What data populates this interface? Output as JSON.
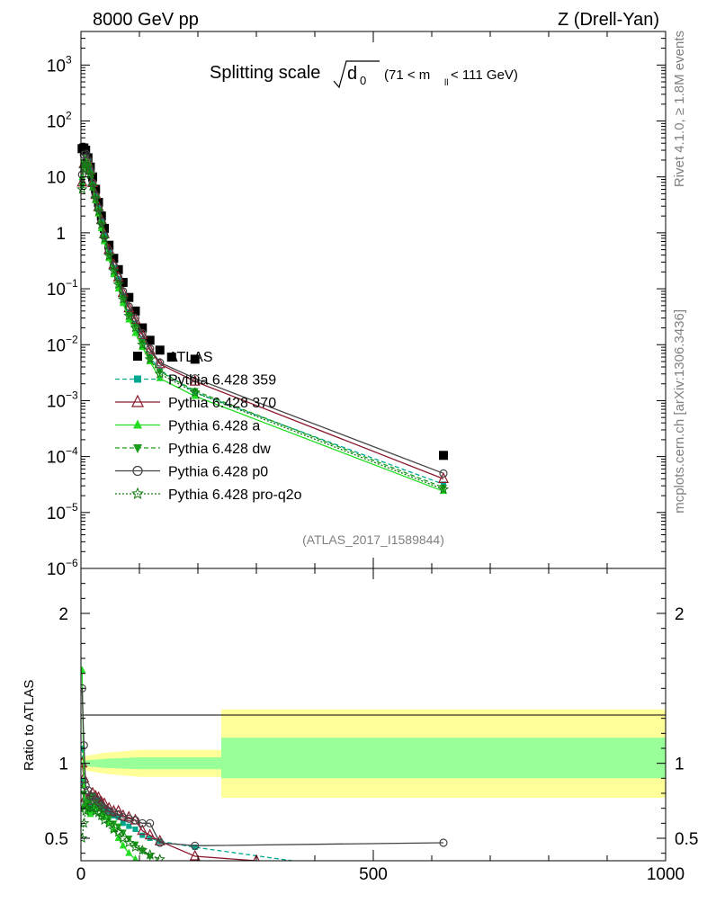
{
  "header": {
    "left": "8000 GeV pp",
    "right": "Z (Drell-Yan)"
  },
  "side_labels": {
    "rivet": "Rivet 4.1.0, ≥ 1.8M events",
    "mcplots": "mcplots.cern.ch [arXiv:1306.3436]"
  },
  "colors": {
    "ATLAS": "#000000",
    "Pythia 6.428 359": "#00a890",
    "Pythia 6.428 370": "#8b1a2c",
    "Pythia 6.428 a": "#22dd22",
    "Pythia 6.428 dw": "#1a9e1a",
    "Pythia 6.428 p0": "#444444",
    "Pythia 6.428 pro-q2o": "#117711",
    "band_outer": "#ffff99",
    "band_inner": "#99ff99"
  },
  "chart_data": [
    {
      "type": "scatter",
      "scale": "log",
      "title_main": "Splitting scale",
      "title_var": "d",
      "title_sub": "0",
      "title_range": "(71 < m",
      "title_range_sub": "ll",
      "title_range_end": " < 111 GeV)",
      "watermark": "(ATLAS_2017_I1589844)",
      "xlim": [
        0,
        1000
      ],
      "ylim_log10": [
        -6,
        3.6
      ],
      "y_tick_labels": [
        {
          "v": -6,
          "base": "10",
          "exp": "−6"
        },
        {
          "v": -5,
          "base": "10",
          "exp": "−5"
        },
        {
          "v": -4,
          "base": "10",
          "exp": "−4"
        },
        {
          "v": -3,
          "base": "10",
          "exp": "−3"
        },
        {
          "v": -2,
          "base": "10",
          "exp": "−2"
        },
        {
          "v": -1,
          "base": "10",
          "exp": "−1"
        },
        {
          "v": 0,
          "base": "1",
          "exp": ""
        },
        {
          "v": 1,
          "base": "10",
          "exp": ""
        },
        {
          "v": 2,
          "base": "10",
          "exp": "2"
        },
        {
          "v": 3,
          "base": "10",
          "exp": "3"
        }
      ],
      "legend": [
        {
          "label": "ATLAS",
          "style": "data"
        },
        {
          "label": "Pythia 6.428 359",
          "style": "dashed",
          "marker": "square"
        },
        {
          "label": "Pythia 6.428 370",
          "style": "solid",
          "marker": "tri-open"
        },
        {
          "label": "Pythia 6.428 a",
          "style": "solid",
          "marker": "tri"
        },
        {
          "label": "Pythia 6.428 dw",
          "style": "dashed",
          "marker": "tri-down"
        },
        {
          "label": "Pythia 6.428 p0",
          "style": "solid",
          "marker": "circle-open"
        },
        {
          "label": "Pythia 6.428 pro-q2o",
          "style": "dotted",
          "marker": "star"
        }
      ],
      "series": [
        {
          "name": "ATLAS",
          "x": [
            2,
            5,
            8,
            12,
            16,
            20,
            25,
            30,
            35,
            40,
            48,
            56,
            64,
            72,
            82,
            93,
            105,
            118,
            135,
            155,
            195,
            620
          ],
          "y": [
            32,
            33,
            30,
            22,
            15,
            10,
            6,
            3.5,
            2,
            1.2,
            0.6,
            0.35,
            0.22,
            0.13,
            0.07,
            0.04,
            0.02,
            0.012,
            0.008,
            0.006,
            0.0055,
            0.000105
          ]
        },
        {
          "name": "Pythia 6.428 359",
          "x": [
            2,
            5,
            8,
            12,
            16,
            20,
            25,
            30,
            35,
            40,
            48,
            56,
            64,
            72,
            82,
            93,
            105,
            118,
            135,
            195,
            620
          ],
          "y": [
            9,
            18,
            22,
            19,
            13.5,
            7.5,
            4.6,
            2.8,
            1.6,
            0.9,
            0.45,
            0.24,
            0.15,
            0.075,
            0.038,
            0.024,
            0.012,
            0.006,
            0.0035,
            0.0014,
            3.2e-05
          ]
        },
        {
          "name": "Pythia 6.428 370",
          "x": [
            2,
            5,
            8,
            12,
            16,
            20,
            25,
            30,
            35,
            40,
            48,
            56,
            64,
            72,
            82,
            93,
            105,
            118,
            135,
            195,
            620
          ],
          "y": [
            8,
            17,
            20,
            18,
            13,
            7.8,
            4.8,
            2.9,
            1.7,
            0.95,
            0.5,
            0.27,
            0.16,
            0.085,
            0.045,
            0.028,
            0.015,
            0.008,
            0.0045,
            0.0022,
            4e-05
          ]
        },
        {
          "name": "Pythia 6.428 a",
          "x": [
            2,
            5,
            8,
            12,
            16,
            20,
            25,
            30,
            35,
            40,
            48,
            56,
            64,
            72,
            82,
            93,
            105,
            118,
            135,
            195,
            620
          ],
          "y": [
            10,
            20,
            22,
            18,
            11,
            6.5,
            3.8,
            2.2,
            1.2,
            0.7,
            0.35,
            0.18,
            0.1,
            0.055,
            0.028,
            0.016,
            0.009,
            0.005,
            0.0025,
            0.0012,
            2.4e-05
          ]
        },
        {
          "name": "Pythia 6.428 dw",
          "x": [
            2,
            5,
            8,
            12,
            16,
            20,
            25,
            30,
            35,
            40,
            48,
            56,
            64,
            72,
            82,
            93,
            105,
            118,
            135,
            195,
            620
          ],
          "y": [
            7,
            15,
            18,
            16,
            11.5,
            7,
            4.2,
            2.5,
            1.45,
            0.8,
            0.4,
            0.22,
            0.13,
            0.068,
            0.034,
            0.021,
            0.011,
            0.0058,
            0.0033,
            0.0015,
            2.8e-05
          ]
        },
        {
          "name": "Pythia 6.428 p0",
          "x": [
            2,
            5,
            8,
            12,
            16,
            20,
            25,
            30,
            35,
            40,
            48,
            56,
            64,
            72,
            82,
            93,
            105,
            118,
            135,
            195,
            620
          ],
          "y": [
            11,
            25,
            26,
            20,
            13,
            7.8,
            4.7,
            2.8,
            1.6,
            0.9,
            0.48,
            0.26,
            0.16,
            0.09,
            0.048,
            0.03,
            0.016,
            0.0085,
            0.0048,
            0.0025,
            5e-05
          ]
        },
        {
          "name": "Pythia 6.428 pro-q2o",
          "x": [
            2,
            5,
            8,
            12,
            16,
            20,
            25,
            30,
            35,
            40,
            48,
            56,
            64,
            72,
            82,
            93,
            105,
            118,
            135,
            195,
            620
          ],
          "y": [
            6,
            14,
            17,
            15,
            11,
            6.8,
            4.1,
            2.4,
            1.4,
            0.78,
            0.39,
            0.21,
            0.12,
            0.065,
            0.033,
            0.02,
            0.01,
            0.0055,
            0.003,
            0.0014,
            2.6e-05
          ]
        }
      ]
    },
    {
      "type": "line",
      "ylabel": "Ratio to ATLAS",
      "xlim": [
        0,
        1000
      ],
      "ylim": [
        0.35,
        2.3
      ],
      "x_ticks": [
        {
          "v": 0,
          "label": "0"
        },
        {
          "v": 500,
          "label": "500"
        },
        {
          "v": 1000,
          "label": "1000"
        }
      ],
      "y_ticks": [
        {
          "v": 0.5,
          "label": "0.5"
        },
        {
          "v": 1,
          "label": "1"
        },
        {
          "v": 2,
          "label": "2"
        }
      ],
      "band_outer": {
        "x": [
          0,
          10,
          40,
          100,
          240,
          240,
          1000
        ],
        "lo": [
          0.97,
          0.95,
          0.93,
          0.91,
          0.91,
          0.77,
          0.77
        ],
        "hi": [
          1.03,
          1.05,
          1.07,
          1.09,
          1.09,
          1.36,
          1.36
        ]
      },
      "band_inner": {
        "x": [
          0,
          10,
          40,
          100,
          240,
          240,
          1000
        ],
        "lo": [
          0.99,
          0.98,
          0.97,
          0.96,
          0.96,
          0.9,
          0.9
        ],
        "hi": [
          1.01,
          1.02,
          1.03,
          1.04,
          1.04,
          1.17,
          1.17
        ]
      },
      "series": [
        {
          "name": "Pythia 6.428 359",
          "x": [
            2,
            5,
            8,
            12,
            16,
            20,
            25,
            30,
            35,
            40,
            48,
            56,
            64,
            72,
            82,
            93,
            105,
            118,
            135,
            195,
            380
          ],
          "y": [
            1.1,
            0.88,
            0.75,
            0.72,
            0.7,
            0.71,
            0.74,
            0.76,
            0.72,
            0.7,
            0.68,
            0.65,
            0.64,
            0.6,
            0.58,
            0.56,
            0.52,
            0.5,
            0.48,
            0.44,
            0.34
          ]
        },
        {
          "name": "Pythia 6.428 370",
          "x": [
            2,
            5,
            8,
            12,
            16,
            20,
            25,
            30,
            35,
            40,
            48,
            56,
            64,
            72,
            82,
            93,
            105,
            118,
            135,
            195,
            300
          ],
          "y": [
            1.0,
            0.9,
            0.77,
            0.75,
            0.78,
            0.8,
            0.78,
            0.77,
            0.74,
            0.73,
            0.7,
            0.68,
            0.68,
            0.65,
            0.64,
            0.62,
            0.55,
            0.52,
            0.48,
            0.38,
            0.35
          ]
        },
        {
          "name": "Pythia 6.428 a",
          "x": [
            2,
            5,
            8,
            12,
            16,
            20,
            25,
            30,
            35,
            40,
            48,
            56,
            64,
            72,
            82,
            93,
            105,
            118,
            135
          ],
          "y": [
            1.62,
            0.85,
            0.72,
            0.68,
            0.66,
            0.68,
            0.72,
            0.7,
            0.66,
            0.64,
            0.6,
            0.56,
            0.5,
            0.45,
            0.4,
            0.36,
            0.34,
            0.33,
            0.32
          ]
        },
        {
          "name": "Pythia 6.428 dw",
          "x": [
            2,
            5,
            8,
            12,
            16,
            20,
            25,
            30,
            35,
            40,
            48,
            56,
            64,
            72,
            82,
            93,
            105,
            118,
            135
          ],
          "y": [
            0.7,
            0.8,
            0.72,
            0.75,
            0.76,
            0.78,
            0.74,
            0.72,
            0.7,
            0.67,
            0.64,
            0.6,
            0.58,
            0.54,
            0.5,
            0.46,
            0.42,
            0.38,
            0.34
          ]
        },
        {
          "name": "Pythia 6.428 p0",
          "x": [
            2,
            5,
            8,
            12,
            16,
            20,
            25,
            30,
            35,
            40,
            48,
            56,
            64,
            72,
            82,
            93,
            105,
            118,
            135,
            195,
            620
          ],
          "y": [
            1.5,
            1.12,
            0.85,
            0.82,
            0.78,
            0.78,
            0.76,
            0.74,
            0.72,
            0.7,
            0.68,
            0.67,
            0.66,
            0.64,
            0.63,
            0.62,
            0.6,
            0.6,
            0.47,
            0.45,
            0.47
          ]
        },
        {
          "name": "Pythia 6.428 pro-q2o",
          "x": [
            2,
            5,
            8,
            12,
            16,
            20,
            25,
            30,
            35,
            40,
            48,
            56,
            64,
            72,
            82,
            93,
            105,
            118,
            135
          ],
          "y": [
            0.5,
            0.6,
            0.68,
            0.7,
            0.72,
            0.7,
            0.68,
            0.67,
            0.65,
            0.62,
            0.6,
            0.56,
            0.54,
            0.5,
            0.47,
            0.44,
            0.42,
            0.39,
            0.36
          ]
        }
      ]
    }
  ]
}
